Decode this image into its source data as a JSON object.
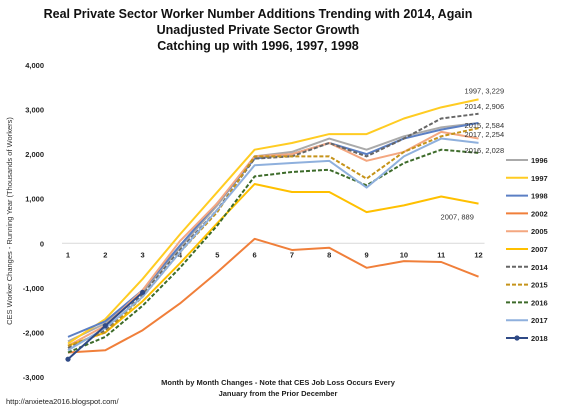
{
  "chart_data": {
    "type": "line",
    "title": "Real Private Sector Worker Number Additions Trending with 2014, Again",
    "subtitle1": "Unadjusted Private Sector Growth",
    "subtitle2": "Catching up with 1996, 1997, 1998",
    "ylabel": "CES Worker Changes - Running Year (Thousands of Workers)",
    "xlabel_line1": "Month by Month Changes - Note that CES Job Loss Occurs Every",
    "xlabel_line2": "January from the Prior December",
    "footer": "http://anxietea2016.blogspot.com/",
    "x": [
      1,
      2,
      3,
      4,
      5,
      6,
      7,
      8,
      9,
      10,
      11,
      12
    ],
    "ylim": [
      -3000,
      4000
    ],
    "yticks": [
      "4,000",
      "3,000",
      "2,000",
      "1,000",
      "0",
      "-1,000",
      "-2,000",
      "-3,000"
    ],
    "ytick_values": [
      4000,
      3000,
      2000,
      1000,
      0,
      -1000,
      -2000,
      -3000
    ],
    "grid": false,
    "legend_position": "right",
    "series": [
      {
        "name": "1996",
        "color": "#aaaaaa",
        "dash": "",
        "marker": false,
        "values": [
          -2200,
          -1800,
          -1100,
          -100,
          850,
          1950,
          2050,
          2350,
          2100,
          2400,
          2600,
          2700
        ]
      },
      {
        "name": "1997",
        "color": "#ffcc22",
        "dash": "",
        "marker": false,
        "values": [
          -2250,
          -1700,
          -800,
          200,
          1150,
          2100,
          2250,
          2450,
          2450,
          2800,
          3050,
          3229
        ]
      },
      {
        "name": "1998",
        "color": "#5b7fc4",
        "dash": "",
        "marker": false,
        "values": [
          -2100,
          -1750,
          -1050,
          -50,
          900,
          1900,
          2000,
          2250,
          2000,
          2350,
          2550,
          2700
        ]
      },
      {
        "name": "2002",
        "color": "#f07f3a",
        "dash": "",
        "marker": false,
        "values": [
          -2450,
          -2400,
          -1950,
          -1350,
          -650,
          100,
          -150,
          -100,
          -550,
          -400,
          -420,
          -750
        ]
      },
      {
        "name": "2005",
        "color": "#f4a780",
        "dash": "",
        "marker": false,
        "values": [
          -2300,
          -1850,
          -1050,
          50,
          900,
          1950,
          2000,
          2250,
          1850,
          2050,
          2500,
          2350
        ]
      },
      {
        "name": "2007",
        "color": "#ffc000",
        "dash": "",
        "marker": false,
        "values": [
          -2300,
          -2000,
          -1300,
          -450,
          450,
          1330,
          1150,
          1150,
          700,
          850,
          1050,
          889
        ]
      },
      {
        "name": "2014",
        "color": "#666666",
        "dash": "4,2",
        "marker": false,
        "values": [
          -2350,
          -1950,
          -1150,
          -150,
          750,
          1900,
          1950,
          2250,
          1950,
          2350,
          2800,
          2906
        ]
      },
      {
        "name": "2015",
        "color": "#c5931a",
        "dash": "4,2",
        "marker": false,
        "values": [
          -2300,
          -2000,
          -1200,
          -200,
          700,
          1950,
          1950,
          1950,
          1450,
          2050,
          2400,
          2584
        ]
      },
      {
        "name": "2016",
        "color": "#3d6b2a",
        "dash": "4,2",
        "marker": false,
        "values": [
          -2450,
          -2100,
          -1400,
          -550,
          400,
          1500,
          1600,
          1650,
          1300,
          1800,
          2100,
          2028
        ]
      },
      {
        "name": "2017",
        "color": "#8fb0dd",
        "dash": "",
        "marker": false,
        "values": [
          -2400,
          -1900,
          -1200,
          -200,
          750,
          1750,
          1800,
          1850,
          1250,
          1950,
          2350,
          2254
        ]
      },
      {
        "name": "2018",
        "color": "#2f4a86",
        "dash": "",
        "marker": true,
        "values": [
          -2600,
          -1850,
          -1100,
          null,
          null,
          null,
          null,
          null,
          null,
          null,
          null,
          null
        ]
      }
    ],
    "annotations": [
      {
        "label": "1997, 3,229",
        "x": 12,
        "y": 3229
      },
      {
        "label": "2014, 2,906",
        "x": 12,
        "y": 2906
      },
      {
        "label": "2015, 2,584",
        "x": 12,
        "y": 2584
      },
      {
        "label": "2017, 2,254",
        "x": 12,
        "y": 2254
      },
      {
        "label": "2016, 2,028",
        "x": 12,
        "y": 2028
      },
      {
        "label": "2007, 889",
        "x": 12,
        "y": 889
      }
    ]
  }
}
